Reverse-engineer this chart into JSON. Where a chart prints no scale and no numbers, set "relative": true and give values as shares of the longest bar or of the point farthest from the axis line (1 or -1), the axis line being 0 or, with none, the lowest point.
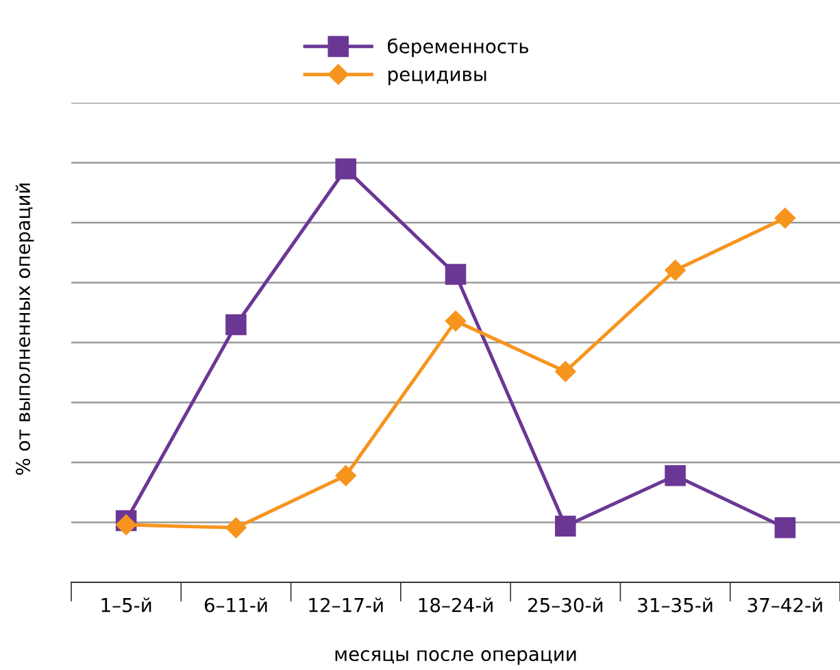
{
  "chart_data": {
    "type": "line",
    "relative": true,
    "xlabel": "месяцы после операции",
    "ylabel": "% от выполненных операций",
    "categories": [
      "1–5-й",
      "6–11-й",
      "12–17-й",
      "18–24-й",
      "25–30-й",
      "31–35-й",
      "37–42-й"
    ],
    "series": [
      {
        "name": "беременность",
        "color": "#6b3795",
        "marker": "square",
        "values": [
          0.149,
          0.623,
          1,
          0.745,
          0.136,
          0.258,
          0.132
        ]
      },
      {
        "name": "рецидивы",
        "color": "#f7941d",
        "marker": "diamond",
        "values": [
          0.139,
          0.132,
          0.258,
          0.632,
          0.51,
          0.755,
          0.881
        ]
      }
    ],
    "grid": "y",
    "legend": "top",
    "line_style": "solid"
  }
}
